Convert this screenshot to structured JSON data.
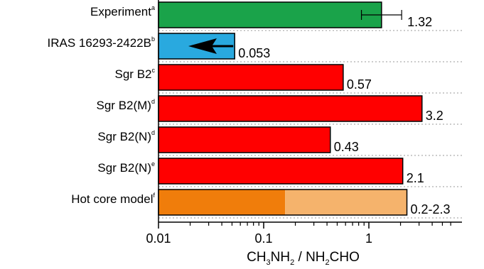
{
  "chart_data": {
    "type": "bar",
    "orientation": "horizontal",
    "x_scale": "log",
    "xlim": [
      0.01,
      6
    ],
    "xticks": [
      {
        "value": 0.01,
        "label": "0.01"
      },
      {
        "value": 0.1,
        "label": "0.1"
      },
      {
        "value": 1,
        "label": "1"
      }
    ],
    "xlabel": {
      "parts": [
        {
          "t": "CH"
        },
        {
          "t": "3",
          "sub": true
        },
        {
          "t": "NH"
        },
        {
          "t": "2",
          "sub": true
        },
        {
          "t": " / NH"
        },
        {
          "t": "2",
          "sub": true
        },
        {
          "t": "CHO"
        }
      ]
    },
    "categories": [
      {
        "name": "Experiment",
        "sup": "a",
        "value": 1.32,
        "value_label": "1.32",
        "color": "#1aa34a",
        "error": [
          0.85,
          2.05
        ]
      },
      {
        "name": "IRAS 16293-2422B",
        "sup": "b",
        "value": 0.053,
        "value_label": "0.053",
        "color": "#29a9df",
        "upper_limit": true
      },
      {
        "name": "Sgr B2",
        "sup": "c",
        "value": 0.57,
        "value_label": "0.57",
        "color": "#ff0000"
      },
      {
        "name": "Sgr B2(M)",
        "sup": "d",
        "value": 3.2,
        "value_label": "3.2",
        "color": "#ff0000"
      },
      {
        "name": "Sgr B2(N)",
        "sup": "d",
        "value": 0.43,
        "value_label": "0.43",
        "color": "#ff0000"
      },
      {
        "name": "Sgr B2(N)",
        "sup": "e",
        "value": 2.1,
        "value_label": "2.1",
        "color": "#ff0000"
      },
      {
        "name": "Hot core model",
        "sup": "f",
        "value": 2.3,
        "value_label": "0.2-2.3",
        "range": [
          0.16,
          2.3
        ],
        "color": "#f5b36c",
        "low_color": "#f07d0b"
      }
    ],
    "grid": "dotted horizontal separators"
  }
}
